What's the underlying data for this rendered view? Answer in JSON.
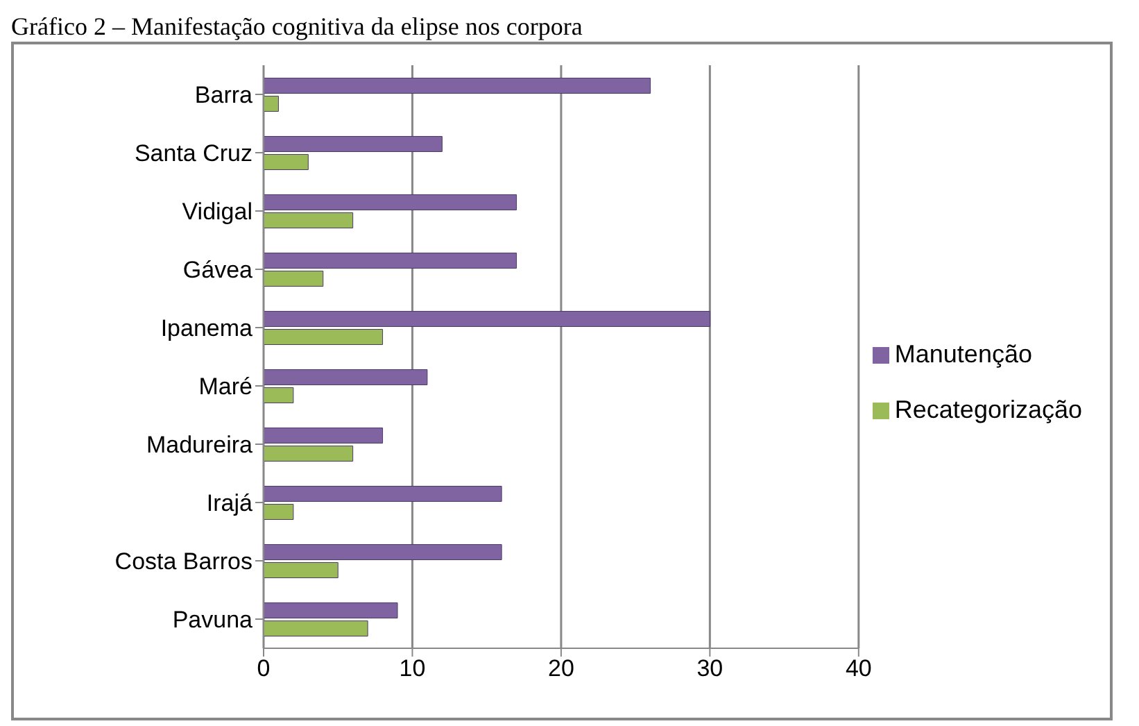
{
  "chart_data": {
    "type": "bar",
    "orientation": "horizontal",
    "title": "Gráfico 2 – Manifestação cognitiva da elipse nos corpora",
    "categories": [
      "Barra",
      "Santa Cruz",
      "Vidigal",
      "Gávea",
      "Ipanema",
      "Maré",
      "Madureira",
      "Irajá",
      "Costa Barros",
      "Pavuna"
    ],
    "series": [
      {
        "name": "Manutenção",
        "color": "#8064a2",
        "values": [
          26,
          12,
          17,
          17,
          30,
          11,
          8,
          16,
          16,
          9
        ]
      },
      {
        "name": "Recategorização",
        "color": "#9bbb59",
        "values": [
          1,
          3,
          6,
          4,
          8,
          2,
          6,
          2,
          5,
          7
        ]
      }
    ],
    "xlim": [
      0,
      40
    ],
    "xticks": [
      0,
      10,
      20,
      30,
      40
    ],
    "grid": "x",
    "legend": "right"
  }
}
